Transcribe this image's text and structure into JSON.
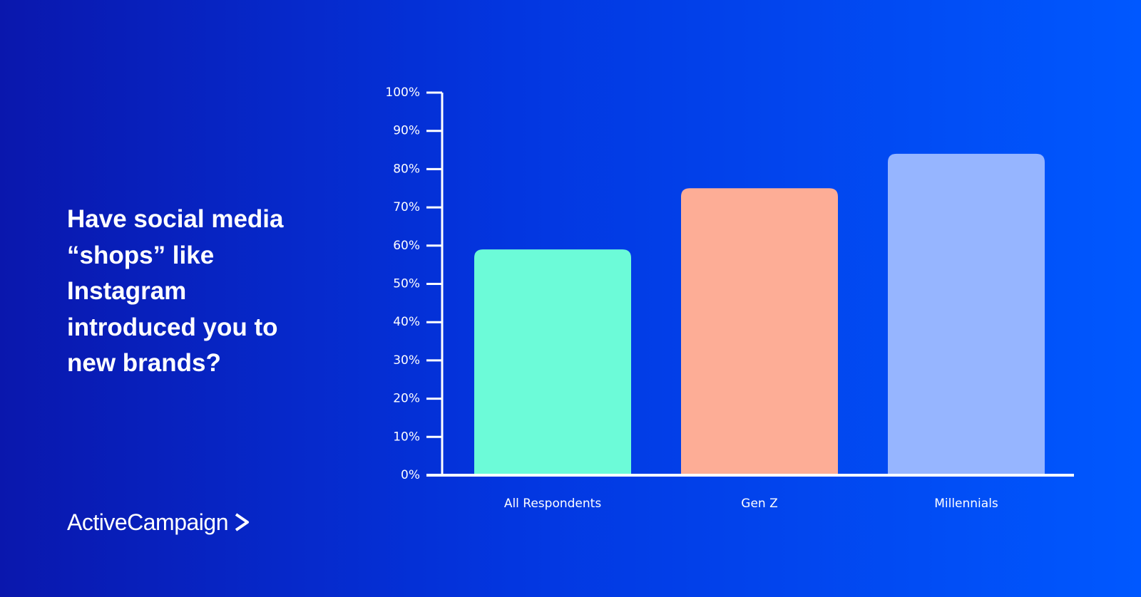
{
  "chart_data": {
    "type": "bar",
    "title": "Have social media “shops” like Instagram introduced you to new brands?",
    "brand": "ActiveCampaign",
    "categories": [
      "All Respondents",
      "Gen Z",
      "Millennials"
    ],
    "values": [
      59,
      75,
      84
    ],
    "colors": [
      "#6cfbd8",
      "#fdad96",
      "#96b5ff"
    ],
    "ylim": [
      0,
      100
    ],
    "yticks": [
      {
        "value": 0,
        "label": "0%"
      },
      {
        "value": 10,
        "label": "10%"
      },
      {
        "value": 20,
        "label": "20%"
      },
      {
        "value": 30,
        "label": "30%"
      },
      {
        "value": 40,
        "label": "40%"
      },
      {
        "value": 50,
        "label": "50%"
      },
      {
        "value": 60,
        "label": "60%"
      },
      {
        "value": 70,
        "label": "70%"
      },
      {
        "value": 80,
        "label": "80%"
      },
      {
        "value": 90,
        "label": "90%"
      },
      {
        "value": 100,
        "label": "100%"
      }
    ],
    "grid": false
  }
}
